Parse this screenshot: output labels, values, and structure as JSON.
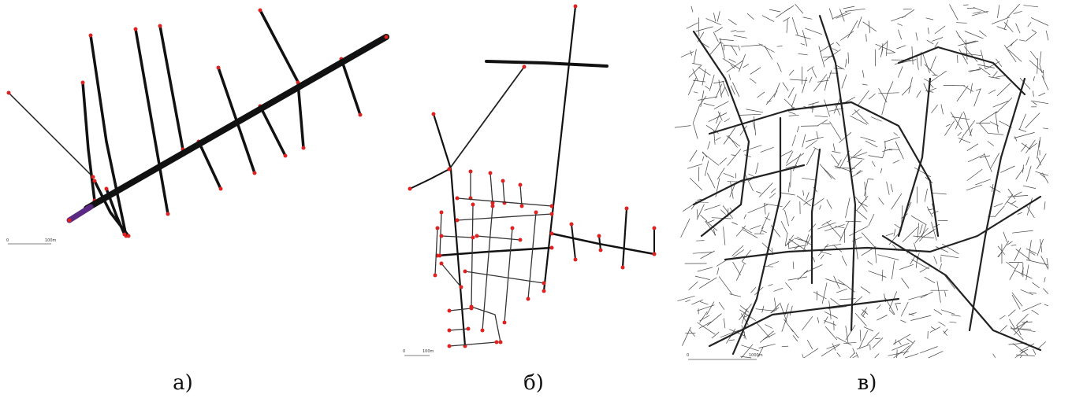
{
  "panels": [
    {
      "caption": "а)",
      "scale_bar": {
        "start": "0",
        "end": "100m"
      }
    },
    {
      "caption": "б)",
      "scale_bar": {
        "start": "0",
        "end": "100m"
      }
    },
    {
      "caption": "в)",
      "scale_bar": {
        "start": "0",
        "end": "1000m"
      }
    }
  ]
}
